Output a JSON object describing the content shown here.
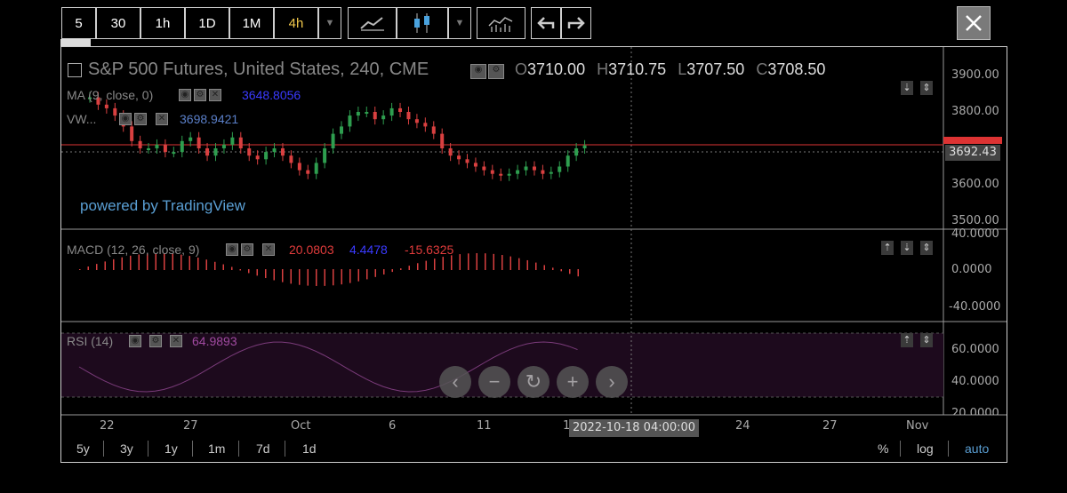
{
  "toolbar": {
    "intervals": [
      "5",
      "30",
      "1h",
      "1D",
      "1M",
      "4h"
    ],
    "active_interval": "4h"
  },
  "chart": {
    "title": "S&P 500 Futures, United States, 240, CME",
    "ohlc": {
      "o_label": "O",
      "o": "3710.00",
      "h_label": "H",
      "h": "3710.75",
      "l_label": "L",
      "l": "3707.50",
      "c_label": "C",
      "c": "3708.50"
    },
    "ma_label": "MA (9, close, 0)",
    "ma_value": "3648.8056",
    "vwap_label": "VW...",
    "vwap_value": "3698.9421",
    "powered_by": "powered by TradingView",
    "price_ticks": [
      "3900.00",
      "3800.00",
      "3600.00",
      "3500.00"
    ],
    "price_marker": "3708.50",
    "crosshair_price": "3692.43",
    "macd_label": "MACD (12, 26, close, 9)",
    "macd_values": [
      "20.0803",
      "4.4478",
      "-15.6325"
    ],
    "macd_ticks": [
      "40.0000",
      "0.0000",
      "-40.0000"
    ],
    "rsi_label": "RSI (14)",
    "rsi_value": "64.9893",
    "rsi_ticks": [
      "60.0000",
      "40.0000",
      "20.0000"
    ],
    "x_ticks": [
      "22",
      "27",
      "Oct",
      "6",
      "11",
      "1",
      "24",
      "27",
      "Nov"
    ],
    "crosshair_time": "2022-10-18 04:00:00",
    "ranges": [
      "5y",
      "3y",
      "1y",
      "1m",
      "7d",
      "1d"
    ],
    "scale_options": [
      "%",
      "log",
      "auto"
    ]
  },
  "colors": {
    "up": "#2e9e4f",
    "down": "#d94040",
    "ma": "#3a3aff",
    "vwap": "#5a7fc8",
    "macd_signal": "#c0392b",
    "rsi": "#7a3b7a",
    "rsi_band": "#1d0a1d",
    "price_marker": "#d33"
  },
  "icons": [
    "chart-type-dropdown-icon",
    "line-chart-icon",
    "candlestick-icon",
    "indicators-icon",
    "undo-icon",
    "redo-icon",
    "close-icon",
    "zoom-out-icon",
    "zoom-in-icon",
    "reset-icon",
    "scroll-left-icon",
    "scroll-right-icon"
  ]
}
